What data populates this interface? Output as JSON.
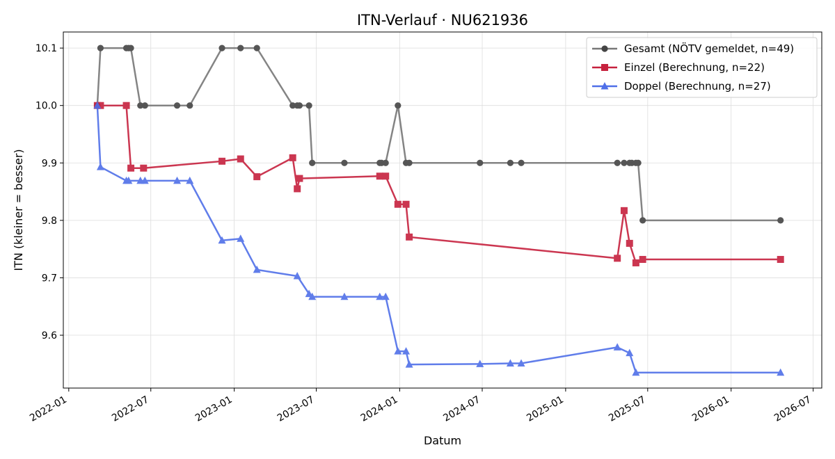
{
  "chart_data": {
    "type": "line",
    "title": "ITN-Verlauf · NU621936",
    "xlabel": "Datum",
    "ylabel": "ITN  (kleiner = besser)",
    "x_axis_type": "date",
    "xlim": [
      "2021-12-20",
      "2026-07-20"
    ],
    "ylim": [
      9.508,
      10.128
    ],
    "x_ticks": [
      "2022-01-01",
      "2022-07-01",
      "2023-01-01",
      "2023-07-01",
      "2024-01-01",
      "2024-07-01",
      "2025-01-01",
      "2025-07-01",
      "2026-01-01",
      "2026-07-01"
    ],
    "x_tick_labels": [
      "2022-01",
      "2022-07",
      "2023-01",
      "2023-07",
      "2024-01",
      "2024-07",
      "2025-01",
      "2025-07",
      "2026-01",
      "2026-07"
    ],
    "y_ticks": [
      9.6,
      9.7,
      9.8,
      9.9,
      10.0,
      10.1
    ],
    "y_tick_labels": [
      "9.6",
      "9.7",
      "9.8",
      "9.9",
      "10.0",
      "10.1"
    ],
    "grid": true,
    "legend_position": "top-right",
    "series": [
      {
        "name": "Gesamt (NÖTV gemeldet, n=49)",
        "color": "#777777",
        "marker_color": "#444444",
        "marker": "circle",
        "x": [
          "2022-03-05",
          "2022-03-12",
          "2022-05-08",
          "2022-05-13",
          "2022-05-18",
          "2022-06-08",
          "2022-06-18",
          "2022-08-28",
          "2022-09-25",
          "2022-12-05",
          "2023-01-15",
          "2023-02-20",
          "2023-05-10",
          "2023-05-20",
          "2023-05-25",
          "2023-06-15",
          "2023-06-22",
          "2023-09-01",
          "2023-11-18",
          "2023-11-22",
          "2023-12-01",
          "2023-12-28",
          "2024-01-15",
          "2024-01-22",
          "2024-06-26",
          "2024-09-01",
          "2024-09-25",
          "2025-04-25",
          "2025-05-10",
          "2025-05-22",
          "2025-05-27",
          "2025-06-05",
          "2025-06-10",
          "2025-06-20",
          "2026-04-20"
        ],
        "y": [
          10.0,
          10.1,
          10.1,
          10.1,
          10.1,
          10.0,
          10.0,
          10.0,
          10.0,
          10.1,
          10.1,
          10.1,
          10.0,
          10.0,
          10.0,
          10.0,
          9.9,
          9.9,
          9.9,
          9.9,
          9.9,
          10.0,
          9.9,
          9.9,
          9.9,
          9.9,
          9.9,
          9.9,
          9.9,
          9.9,
          9.9,
          9.9,
          9.9,
          9.8,
          9.8
        ]
      },
      {
        "name": "Einzel (Berechnung, n=22)",
        "color": "#c6213e",
        "marker_color": "#c6213e",
        "marker": "square",
        "x": [
          "2022-03-05",
          "2022-03-12",
          "2022-05-08",
          "2022-05-18",
          "2022-06-15",
          "2022-12-05",
          "2023-01-15",
          "2023-02-20",
          "2023-05-10",
          "2023-05-20",
          "2023-05-25",
          "2023-11-18",
          "2023-12-01",
          "2023-12-28",
          "2024-01-15",
          "2024-01-22",
          "2025-04-25",
          "2025-05-10",
          "2025-05-22",
          "2025-06-05",
          "2025-06-20",
          "2026-04-20"
        ],
        "y": [
          10.0,
          10.0,
          10.0,
          9.891,
          9.891,
          9.903,
          9.907,
          9.876,
          9.909,
          9.855,
          9.873,
          9.877,
          9.877,
          9.828,
          9.828,
          9.771,
          9.734,
          9.817,
          9.76,
          9.726,
          9.732,
          9.732
        ]
      },
      {
        "name": "Doppel (Berechnung, n=27)",
        "color": "#4f6fe8",
        "marker_color": "#4f6fe8",
        "marker": "triangle",
        "x": [
          "2022-03-05",
          "2022-03-12",
          "2022-05-08",
          "2022-05-13",
          "2022-06-08",
          "2022-06-18",
          "2022-08-28",
          "2022-09-25",
          "2022-12-05",
          "2023-01-15",
          "2023-02-20",
          "2023-05-20",
          "2023-06-15",
          "2023-06-22",
          "2023-09-01",
          "2023-11-18",
          "2023-12-01",
          "2023-12-28",
          "2024-01-15",
          "2024-01-22",
          "2024-06-26",
          "2024-09-01",
          "2024-09-25",
          "2025-04-25",
          "2025-05-22",
          "2025-06-05",
          "2026-04-20"
        ],
        "y": [
          10.0,
          9.893,
          9.869,
          9.869,
          9.869,
          9.869,
          9.869,
          9.869,
          9.765,
          9.768,
          9.714,
          9.703,
          9.672,
          9.667,
          9.667,
          9.667,
          9.667,
          9.572,
          9.572,
          9.549,
          9.55,
          9.551,
          9.551,
          9.579,
          9.569,
          9.535,
          9.535
        ]
      }
    ]
  }
}
